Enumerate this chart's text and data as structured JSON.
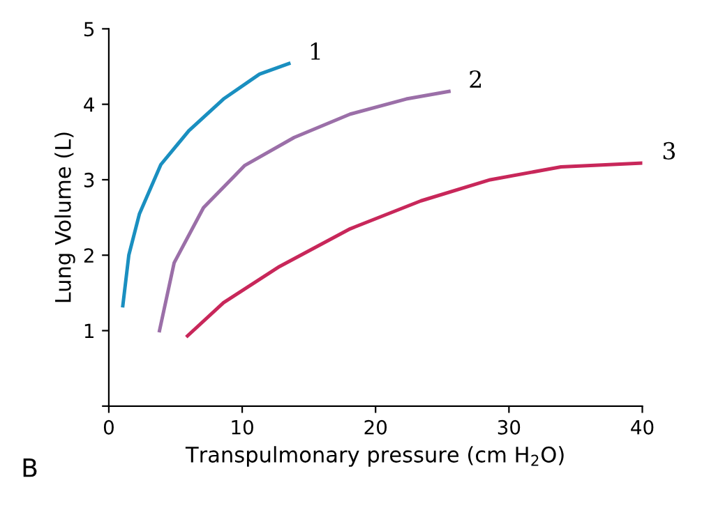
{
  "chart_data": {
    "type": "line",
    "xlabel": "Transpulmonary pressure (cm H$_{2}$O)",
    "ylabel": "Lung Volume (L)",
    "xlim": [
      0,
      40
    ],
    "ylim": [
      0,
      5
    ],
    "xticks": [
      0,
      10,
      20,
      30,
      40
    ],
    "yticks": [
      {
        "value": 0,
        "label": null
      },
      1,
      2,
      3,
      4,
      5
    ],
    "grid": false,
    "legend": false,
    "marker": "none",
    "line_style": "solid",
    "series": [
      {
        "color": "#1a8fc0",
        "x": [
          1.05,
          1.5,
          2.3,
          3.9,
          6.0,
          8.6,
          11.3,
          13.5
        ],
        "values": [
          1.33,
          2.0,
          2.55,
          3.2,
          3.65,
          4.07,
          4.4,
          4.54
        ]
      },
      {
        "color": "#9b6fa8",
        "x": [
          3.8,
          4.9,
          7.1,
          10.2,
          13.9,
          18.1,
          22.3,
          25.5
        ],
        "values": [
          1.0,
          1.9,
          2.63,
          3.19,
          3.56,
          3.87,
          4.07,
          4.17
        ]
      },
      {
        "color": "#c8275a",
        "x": [
          5.9,
          8.6,
          12.8,
          18.1,
          23.4,
          28.6,
          33.9,
          40
        ],
        "values": [
          0.93,
          1.37,
          1.85,
          2.35,
          2.72,
          3.0,
          3.17,
          3.22
        ]
      }
    ],
    "annotations": [
      {
        "text": "1",
        "x": 13.5,
        "y": 4.54
      },
      {
        "text": "2",
        "x": 25.5,
        "y": 4.17
      },
      {
        "text": "3",
        "x": 40,
        "y": 3.22
      },
      "B"
    ]
  }
}
